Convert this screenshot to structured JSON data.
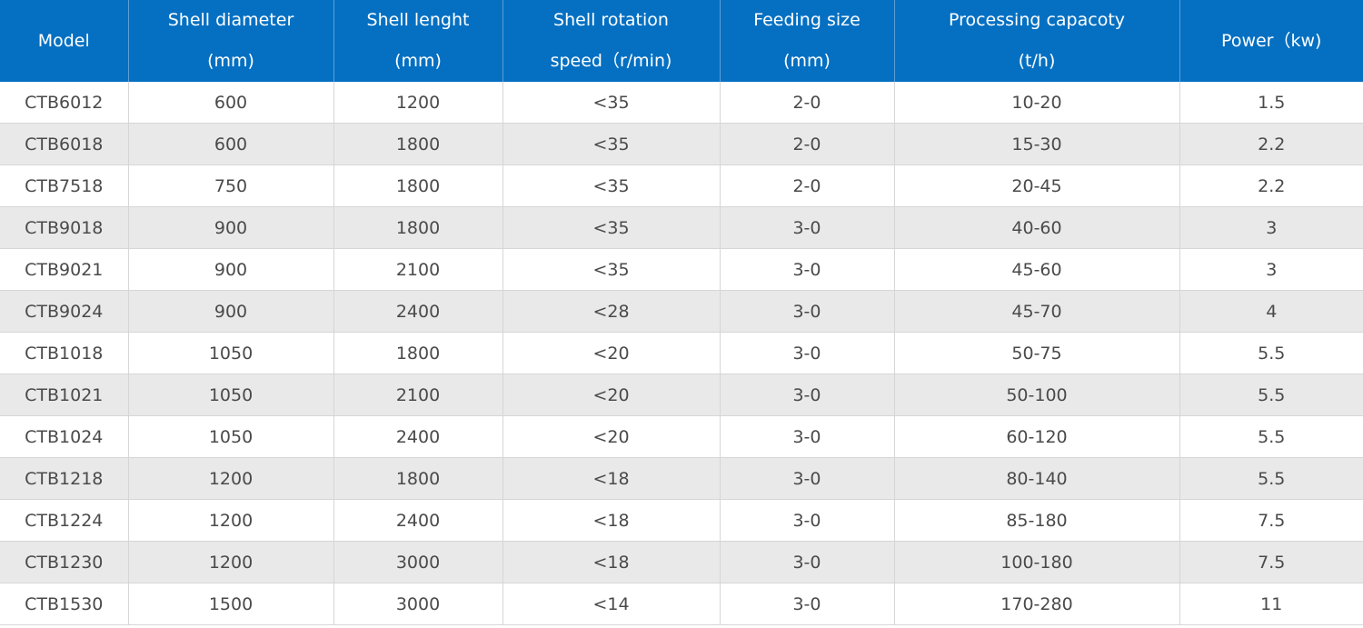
{
  "table": {
    "headers": [
      [
        "Model"
      ],
      [
        "Shell diameter",
        "(mm)"
      ],
      [
        "Shell lenght",
        "(mm)"
      ],
      [
        "Shell rotation",
        "speed（r/min)"
      ],
      [
        "Feeding size",
        "(mm)"
      ],
      [
        "Processing capacoty",
        "(t/h)"
      ],
      [
        "Power（kw)"
      ]
    ],
    "rows": [
      [
        "CTB6012",
        "600",
        "1200",
        "<35",
        "2-0",
        "10-20",
        "1.5"
      ],
      [
        "CTB6018",
        "600",
        "1800",
        "<35",
        "2-0",
        "15-30",
        "2.2"
      ],
      [
        "CTB7518",
        "750",
        "1800",
        "<35",
        "2-0",
        "20-45",
        "2.2"
      ],
      [
        "CTB9018",
        "900",
        "1800",
        "<35",
        "3-0",
        "40-60",
        "3"
      ],
      [
        "CTB9021",
        "900",
        "2100",
        "<35",
        "3-0",
        "45-60",
        "3"
      ],
      [
        "CTB9024",
        "900",
        "2400",
        "<28",
        "3-0",
        "45-70",
        "4"
      ],
      [
        "CTB1018",
        "1050",
        "1800",
        "<20",
        "3-0",
        "50-75",
        "5.5"
      ],
      [
        "CTB1021",
        "1050",
        "2100",
        "<20",
        "3-0",
        "50-100",
        "5.5"
      ],
      [
        "CTB1024",
        "1050",
        "2400",
        "<20",
        "3-0",
        "60-120",
        "5.5"
      ],
      [
        "CTB1218",
        "1200",
        "1800",
        "<18",
        "3-0",
        "80-140",
        "5.5"
      ],
      [
        "CTB1224",
        "1200",
        "2400",
        "<18",
        "3-0",
        "85-180",
        "7.5"
      ],
      [
        "CTB1230",
        "1200",
        "3000",
        "<18",
        "3-0",
        "100-180",
        "7.5"
      ],
      [
        "CTB1530",
        "1500",
        "3000",
        "<14",
        "3-0",
        "170-280",
        "11"
      ]
    ]
  }
}
